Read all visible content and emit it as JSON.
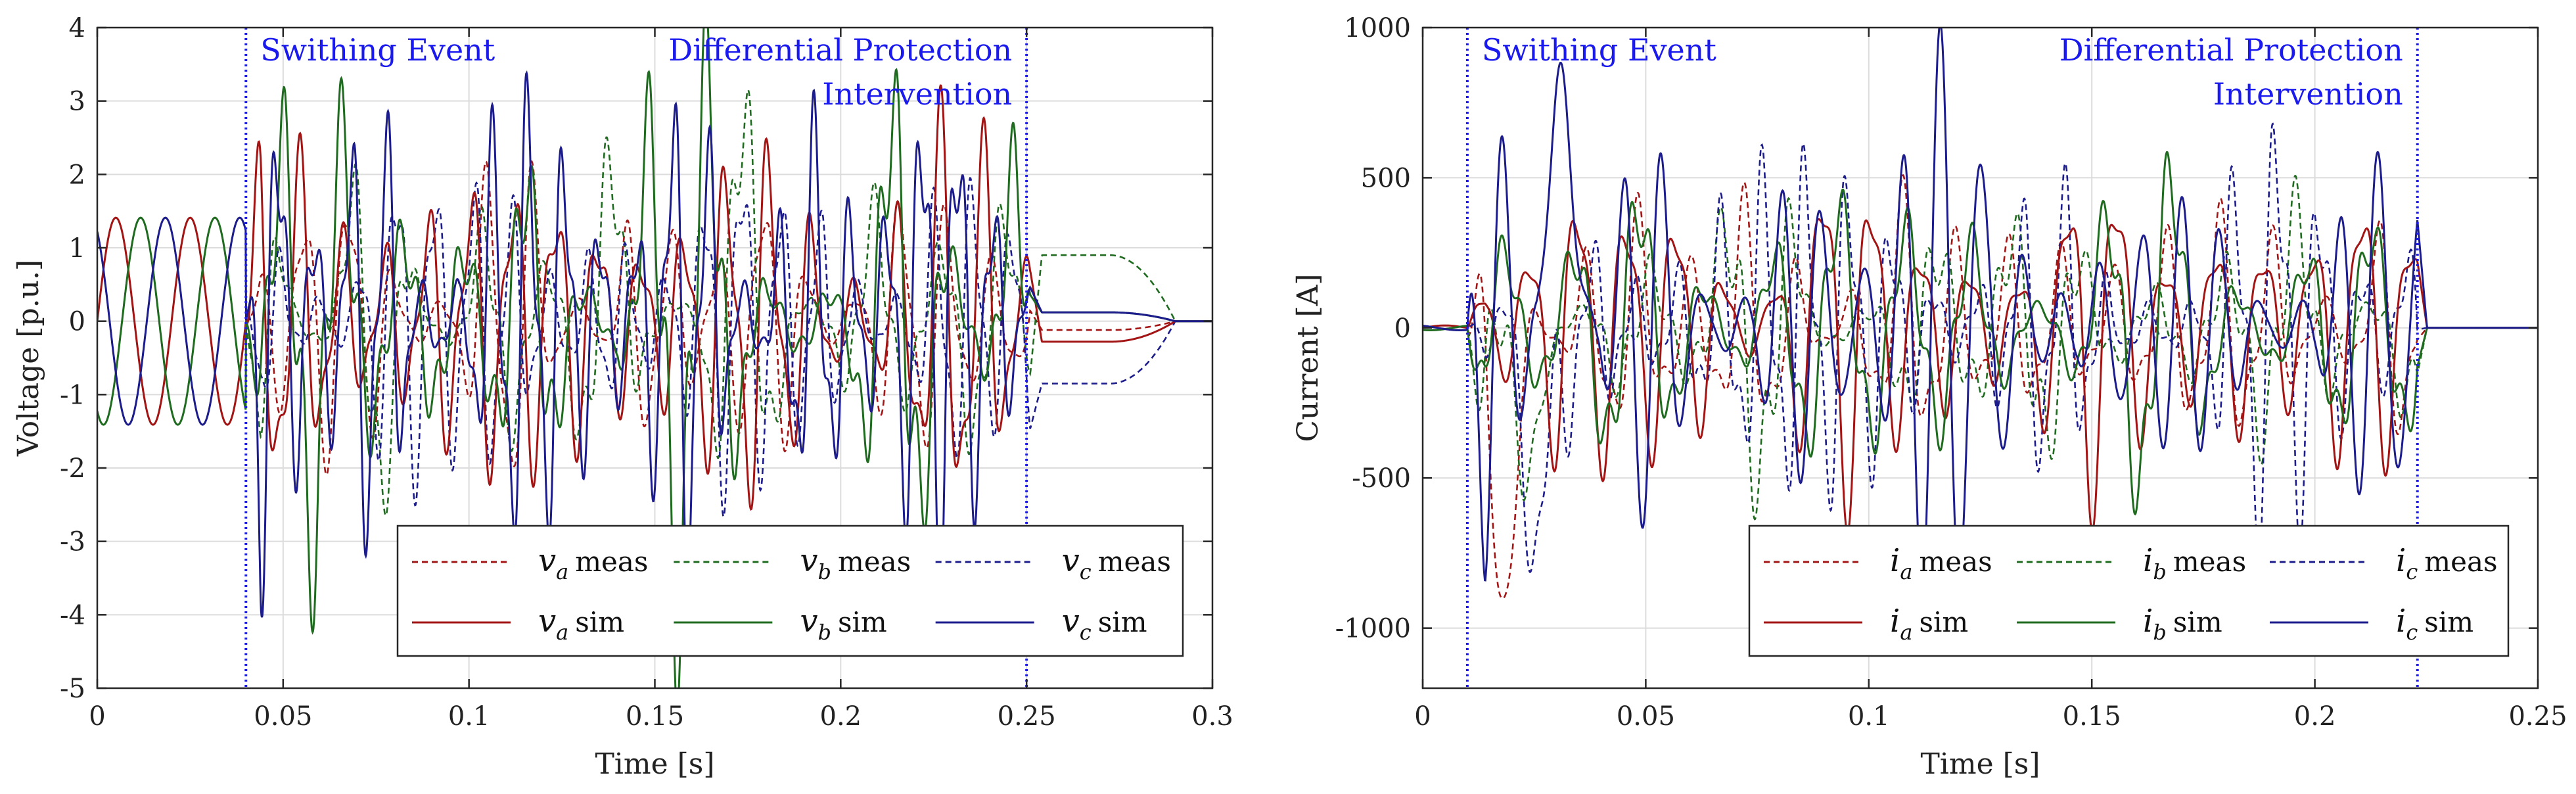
{
  "chart_data": [
    {
      "type": "line",
      "xlabel": "Time [s]",
      "ylabel": "Voltage [p.u.]",
      "xlim": [
        0,
        0.3
      ],
      "ylim": [
        -5,
        4
      ],
      "xticks": [
        0,
        0.05,
        0.1,
        0.15,
        0.2,
        0.25,
        0.3
      ],
      "xtick_labels": [
        "0",
        "0.05",
        "0.1",
        "0.15",
        "0.2",
        "0.25",
        "0.3"
      ],
      "yticks": [
        -5,
        -4,
        -3,
        -2,
        -1,
        0,
        1,
        2,
        3,
        4
      ],
      "ytick_labels": [
        "-5",
        "-4",
        "-3",
        "-2",
        "-1",
        "0",
        "1",
        "2",
        "3",
        "4"
      ],
      "grid": true,
      "events": [
        {
          "x": 0.04,
          "label_lines": [
            "Swithing Event"
          ],
          "align": "left"
        },
        {
          "x": 0.25,
          "label_lines": [
            "Differential Protection",
            "Intervention"
          ],
          "align": "right"
        }
      ],
      "signal": {
        "pre_event_amplitude": 1.41,
        "frequency_hz": 50,
        "transient_end": 0.251,
        "post_event_end": 0.29,
        "transient_freq_hz": [
          87,
          61,
          104
        ],
        "transient_peak": [
          2.2,
          2.3,
          2.6
        ],
        "meas_scale": 0.7,
        "post_levels": {
          "a_meas": -0.12,
          "b_meas": 0.9,
          "c_meas": -0.85,
          "a_sim": -0.28,
          "b_sim": 0.12,
          "c_sim": 0.12
        }
      },
      "legend": {
        "position": "lower-right",
        "entries": [
          {
            "symbol": "v",
            "sub": "a",
            "text": "meas",
            "style": "dashed",
            "color": "#a31515"
          },
          {
            "symbol": "v",
            "sub": "b",
            "text": "meas",
            "style": "dashed",
            "color": "#1f6b1f"
          },
          {
            "symbol": "v",
            "sub": "c",
            "text": "meas",
            "style": "dashed",
            "color": "#1c1c8c"
          },
          {
            "symbol": "v",
            "sub": "a",
            "text": "sim",
            "style": "solid",
            "color": "#a31515"
          },
          {
            "symbol": "v",
            "sub": "b",
            "text": "sim",
            "style": "solid",
            "color": "#1f6b1f"
          },
          {
            "symbol": "v",
            "sub": "c",
            "text": "sim",
            "style": "solid",
            "color": "#1c1c8c"
          }
        ]
      }
    },
    {
      "type": "line",
      "xlabel": "Time [s]",
      "ylabel": "Current [A]",
      "xlim": [
        0,
        0.25
      ],
      "ylim": [
        -1200,
        1000
      ],
      "xticks": [
        0,
        0.05,
        0.1,
        0.15,
        0.2,
        0.25
      ],
      "xtick_labels": [
        "0",
        "0.05",
        "0.1",
        "0.15",
        "0.2",
        "0.25"
      ],
      "yticks": [
        -1000,
        -500,
        0,
        500,
        1000
      ],
      "ytick_labels": [
        "-1000",
        "-500",
        "0",
        "500",
        "1000"
      ],
      "grid": true,
      "events": [
        {
          "x": 0.01,
          "label_lines": [
            "Swithing Event"
          ],
          "align": "left"
        },
        {
          "x": 0.223,
          "label_lines": [
            "Differential Protection",
            "Intervention"
          ],
          "align": "right"
        }
      ],
      "signal": {
        "pre_event_amplitude": 8,
        "frequency_hz": 50,
        "transient_end": 0.223,
        "post_event_end": 0.25,
        "transient_freq_hz": [
          91,
          67,
          112
        ],
        "transient_peak": [
          480,
          430,
          560
        ],
        "meas_scale": 0.75,
        "initial_spike": [
          -780,
          -560,
          -720
        ],
        "post_levels": {
          "a_meas": 0,
          "b_meas": 0,
          "c_meas": 0,
          "a_sim": 0,
          "b_sim": 0,
          "c_sim": 0
        }
      },
      "legend": {
        "position": "lower-right",
        "entries": [
          {
            "symbol": "i",
            "sub": "a",
            "text": "meas",
            "style": "dashed",
            "color": "#a31515"
          },
          {
            "symbol": "i",
            "sub": "b",
            "text": "meas",
            "style": "dashed",
            "color": "#1f6b1f"
          },
          {
            "symbol": "i",
            "sub": "c",
            "text": "meas",
            "style": "dashed",
            "color": "#1c1c8c"
          },
          {
            "symbol": "i",
            "sub": "a",
            "text": "sim",
            "style": "solid",
            "color": "#a31515"
          },
          {
            "symbol": "i",
            "sub": "b",
            "text": "sim",
            "style": "solid",
            "color": "#1f6b1f"
          },
          {
            "symbol": "i",
            "sub": "c",
            "text": "sim",
            "style": "solid",
            "color": "#1c1c8c"
          }
        ]
      }
    }
  ]
}
